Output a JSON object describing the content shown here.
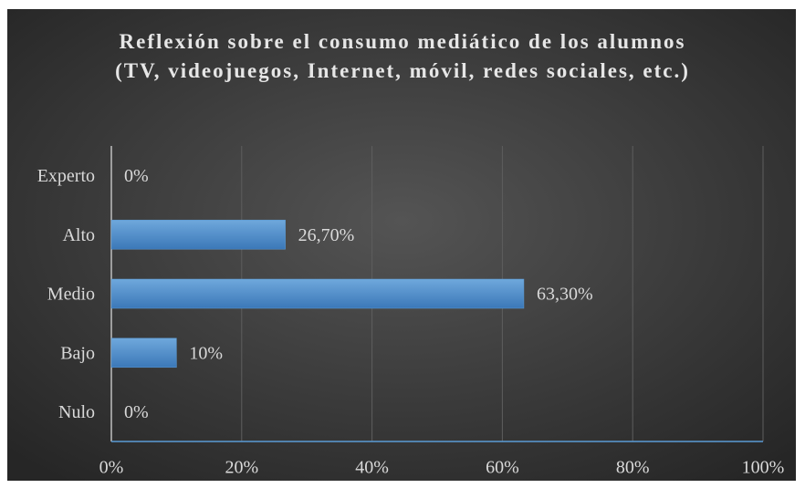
{
  "chart_data": {
    "type": "hbar",
    "title": "Reflexión sobre el consumo mediático de los alumnos (TV, videojuegos, Internet, móvil, redes sociales, etc.)",
    "categories": [
      "Experto",
      "Alto",
      "Medio",
      "Bajo",
      "Nulo"
    ],
    "values": [
      0,
      26.7,
      63.3,
      10,
      0
    ],
    "value_labels": [
      "0%",
      "26,70%",
      "63,30%",
      "10%",
      "0%"
    ],
    "color": "#5b9bd5",
    "xlim": [
      0,
      100
    ],
    "xticks": [
      {
        "value": 0,
        "label": "0%"
      },
      {
        "value": 20,
        "label": "20%"
      },
      {
        "value": 40,
        "label": "40%"
      },
      {
        "value": 60,
        "label": "60%"
      },
      {
        "value": 80,
        "label": "80%"
      },
      {
        "value": 100,
        "label": "100%"
      }
    ],
    "grid": true
  }
}
